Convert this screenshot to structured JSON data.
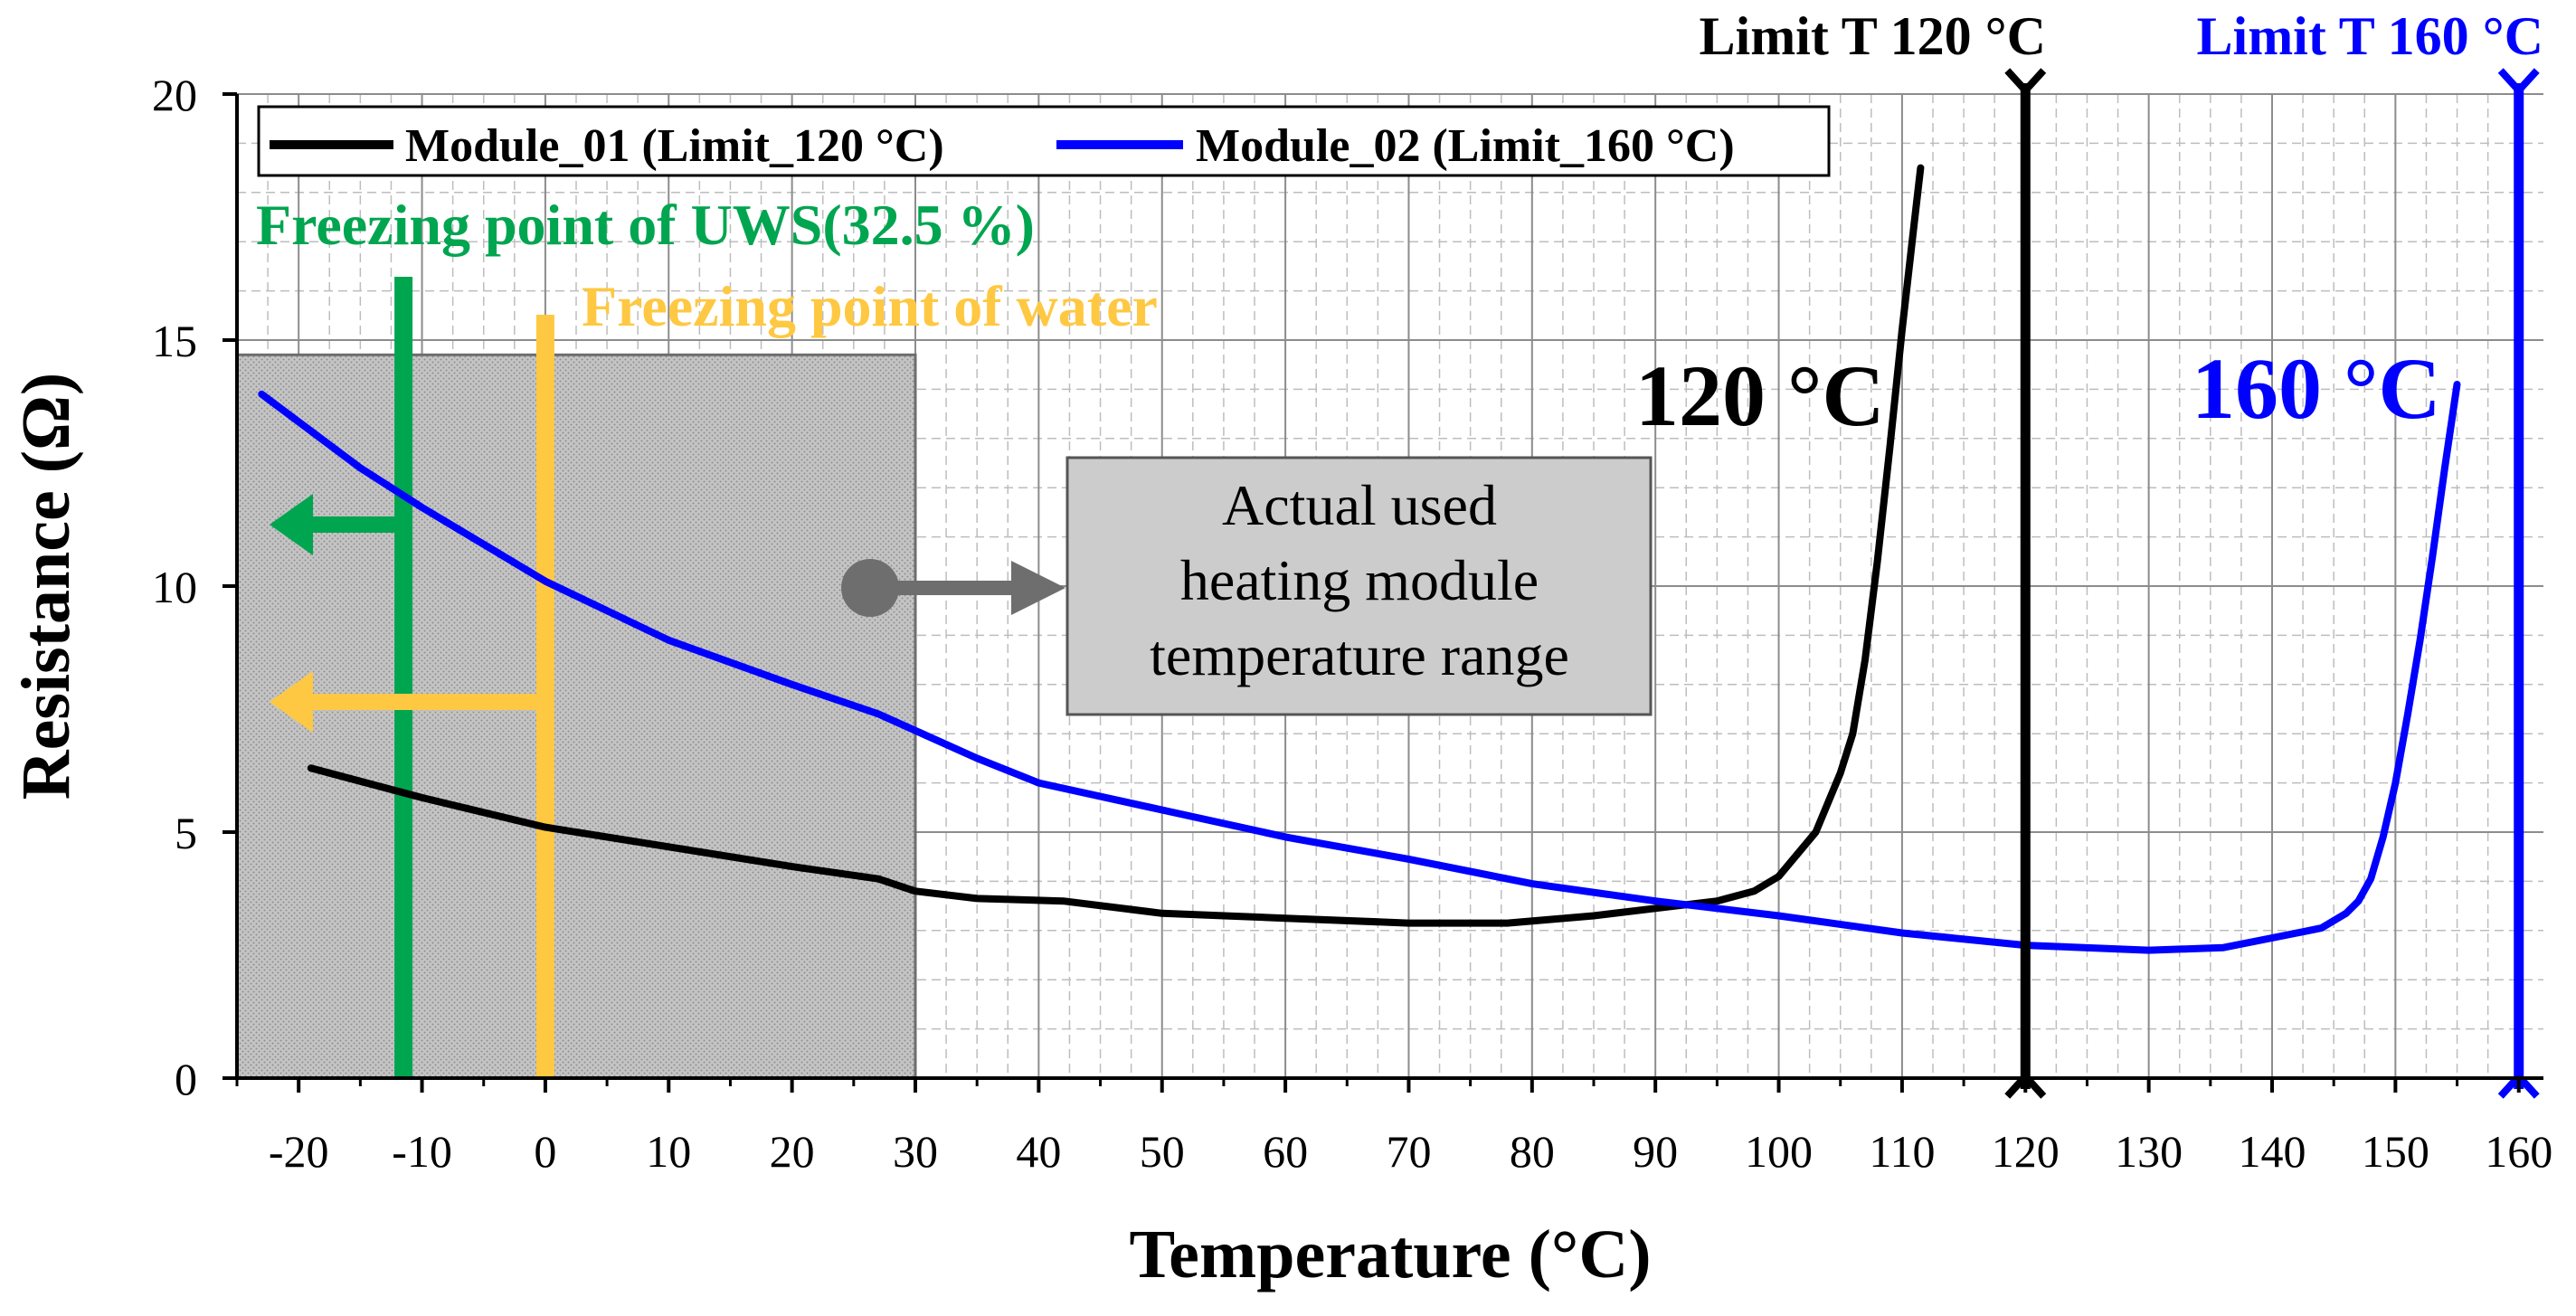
{
  "chart_data": {
    "type": "line",
    "xlabel": "Temperature (°C)",
    "ylabel": "Resistance (Ω)",
    "xlim": [
      -25,
      162
    ],
    "ylim": [
      0,
      20
    ],
    "x_ticks": [
      -20,
      -10,
      0,
      10,
      20,
      30,
      40,
      50,
      60,
      70,
      80,
      90,
      100,
      110,
      120,
      130,
      140,
      150,
      160
    ],
    "x_tick_labels": [
      "-20",
      "-10",
      "0",
      "10",
      "20",
      "30",
      "40",
      "50",
      "60",
      "70",
      "80",
      "90",
      "100",
      "110",
      "120",
      "130",
      "140",
      "150",
      "160"
    ],
    "y_ticks": [
      0,
      5,
      10,
      15,
      20
    ],
    "y_tick_labels": [
      "0",
      "5",
      "10",
      "15",
      "20"
    ],
    "grid": true,
    "legend_position": "top-left",
    "series": [
      {
        "name": "Module_01 (Limit_120 °C)",
        "color": "#000000",
        "x": [
          -19,
          -10,
          0,
          10,
          20,
          27,
          30,
          35,
          42,
          50,
          60,
          70,
          78,
          85,
          90,
          95,
          98,
          100,
          103,
          105,
          106,
          107,
          108,
          109,
          110,
          111,
          111.5
        ],
        "y": [
          6.3,
          5.7,
          5.1,
          4.7,
          4.3,
          4.05,
          3.8,
          3.65,
          3.6,
          3.35,
          3.25,
          3.15,
          3.15,
          3.3,
          3.45,
          3.6,
          3.8,
          4.1,
          5.0,
          6.2,
          7.0,
          8.5,
          10.5,
          12.8,
          15.2,
          17.4,
          18.5
        ]
      },
      {
        "name": "Module_02 (Limit_160 °C)",
        "color": "#0000ff",
        "x": [
          -23,
          -15,
          -10,
          0,
          10,
          20,
          27,
          35,
          40,
          50,
          60,
          70,
          80,
          90,
          100,
          110,
          120,
          130,
          136,
          140,
          144,
          146,
          147,
          148,
          149,
          150,
          151,
          152,
          153,
          154,
          155
        ],
        "y": [
          13.9,
          12.4,
          11.6,
          10.1,
          8.9,
          8.0,
          7.4,
          6.5,
          6.0,
          5.45,
          4.9,
          4.45,
          3.95,
          3.6,
          3.3,
          2.95,
          2.7,
          2.6,
          2.65,
          2.85,
          3.05,
          3.35,
          3.6,
          4.05,
          4.9,
          6.0,
          7.4,
          8.9,
          10.6,
          12.4,
          14.1
        ]
      }
    ],
    "limit_lines": [
      {
        "x": 120,
        "label": "Limit T 120 °C",
        "color": "#000000"
      },
      {
        "x": 160,
        "label": "Limit T 160 °C",
        "color": "#0000ff"
      }
    ],
    "reference_lines": [
      {
        "x": -11.5,
        "label": "Freezing point of UWS(32.5 %)",
        "color": "#00a550"
      },
      {
        "x": 0,
        "label": "Freezing point of water",
        "color": "#ffc842"
      }
    ],
    "shaded_region": {
      "x": [
        -25,
        30
      ],
      "y": [
        0,
        14.7
      ],
      "color": "#a0a0a0"
    },
    "annotations": {
      "range_box_lines": [
        "Actual used",
        "heating module",
        "temperature range"
      ],
      "label_120": "120 °C",
      "label_160": "160 °C"
    }
  }
}
